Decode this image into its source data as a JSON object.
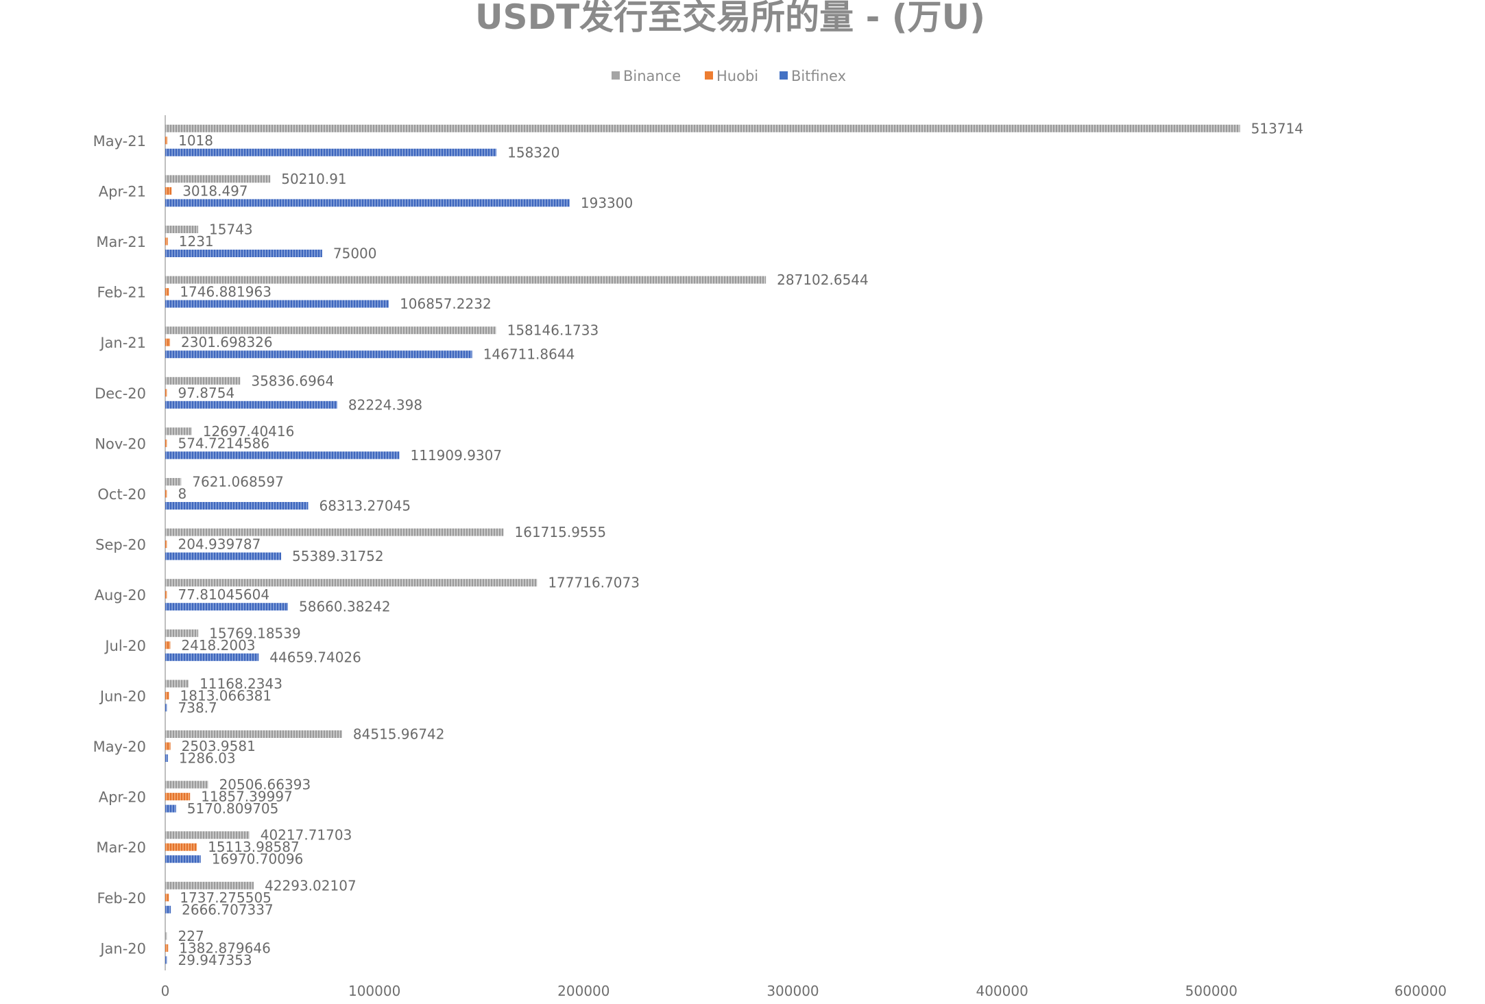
{
  "chart_data": {
    "type": "bar",
    "orientation": "horizontal",
    "title": "USDT发行至交易所的量 - (万U)",
    "legend_position": "top",
    "grid": false,
    "categories": [
      "May-21",
      "Apr-21",
      "Mar-21",
      "Feb-21",
      "Jan-21",
      "Dec-20",
      "Nov-20",
      "Oct-20",
      "Sep-20",
      "Aug-20",
      "Jul-20",
      "Jun-20",
      "May-20",
      "Apr-20",
      "Mar-20",
      "Feb-20",
      "Jan-20"
    ],
    "series": [
      {
        "name": "Binance",
        "color": "#a5a5a5",
        "values": [
          513714,
          50210.91,
          15743,
          287102.6544,
          158146.1733,
          35836.6964,
          12697.40416,
          7621.068597,
          161715.9555,
          177716.7073,
          15769.18539,
          11168.2343,
          84515.96742,
          20506.66393,
          40217.71703,
          42293.02107,
          227
        ],
        "labels": [
          "513714",
          "50210.91",
          "15743",
          "287102.6544",
          "158146.1733",
          "35836.6964",
          "12697.40416",
          "7621.068597",
          "161715.9555",
          "177716.7073",
          "15769.18539",
          "11168.2343",
          "84515.96742",
          "20506.66393",
          "40217.71703",
          "42293.02107",
          "227"
        ]
      },
      {
        "name": "Huobi",
        "color": "#ed7d31",
        "values": [
          1018,
          3018.497,
          1231,
          1746.881963,
          2301.698326,
          97.8754,
          574.7214586,
          8,
          204.939787,
          77.81045604,
          2418.2003,
          1813.066381,
          2503.9581,
          11857.39997,
          15113.98587,
          1737.275505,
          1382.879646
        ],
        "labels": [
          "1018",
          "3018.497",
          "1231",
          "1746.881963",
          "2301.698326",
          "97.8754",
          "574.7214586",
          "8",
          "204.939787",
          "77.81045604",
          "2418.2003",
          "1813.066381",
          "2503.9581",
          "11857.39997",
          "15113.98587",
          "1737.275505",
          "1382.879646"
        ]
      },
      {
        "name": "Bitfinex",
        "color": "#4472c4",
        "values": [
          158320,
          193300,
          75000,
          106857.2232,
          146711.8644,
          82224.398,
          111909.9307,
          68313.27045,
          55389.31752,
          58660.38242,
          44659.74026,
          738.7,
          1286.03,
          5170.809705,
          16970.70096,
          2666.707337,
          29.947353
        ],
        "labels": [
          "158320",
          "193300",
          "75000",
          "106857.2232",
          "146711.8644",
          "82224.398",
          "111909.9307",
          "68313.27045",
          "55389.31752",
          "58660.38242",
          "44659.74026",
          "738.7",
          "1286.03",
          "5170.809705",
          "16970.70096",
          "2666.707337",
          "29.947353"
        ]
      }
    ],
    "xlim": [
      0,
      600000
    ],
    "xticks": [
      "0",
      "100000",
      "200000",
      "300000",
      "400000",
      "500000",
      "600000"
    ]
  }
}
